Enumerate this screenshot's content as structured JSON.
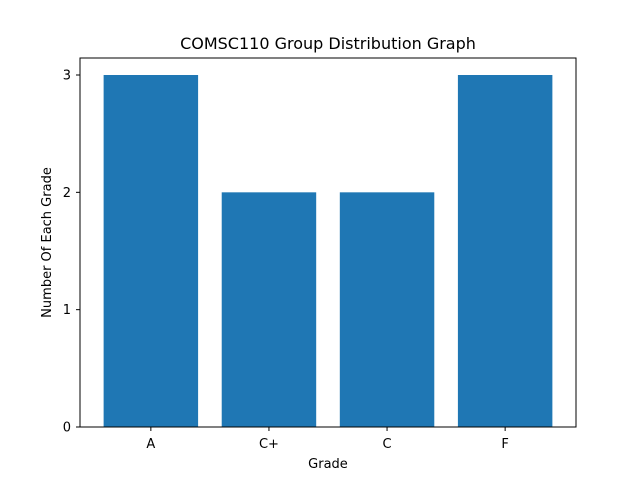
{
  "chart_data": {
    "type": "bar",
    "title": "COMSC110 Group Distribution Graph",
    "xlabel": "Grade",
    "ylabel": "Number Of Each Grade",
    "categories": [
      "A",
      "C+",
      "C",
      "F"
    ],
    "values": [
      3,
      2,
      2,
      3
    ],
    "ylim": [
      0,
      3
    ],
    "yticks": [
      "0",
      "1",
      "2",
      "3"
    ],
    "grid": false,
    "legend": "none",
    "bar_color": "#1f77b4"
  }
}
